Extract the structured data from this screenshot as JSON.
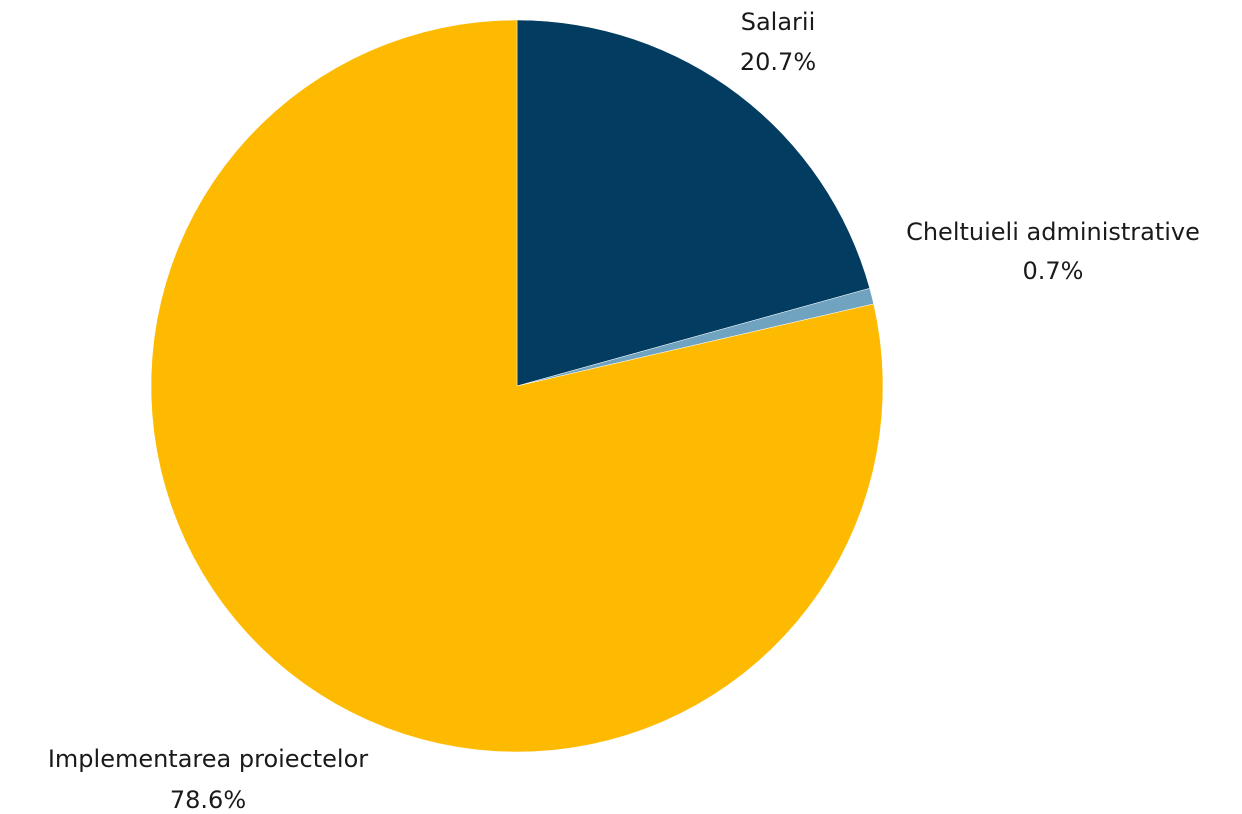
{
  "chart_data": {
    "type": "pie",
    "title": "",
    "start_angle_deg": 0,
    "direction": "clockwise",
    "slices": [
      {
        "label": "Salarii",
        "value": 20.7,
        "value_label": "20.7%",
        "color": "#023D61"
      },
      {
        "label": "Cheltuieli administrative",
        "value": 0.7,
        "value_label": "0.7%",
        "color": "#6FA3BF"
      },
      {
        "label": "Implementarea proiectelor",
        "value": 78.6,
        "value_label": "78.6%",
        "color": "#FDBA01"
      }
    ]
  }
}
